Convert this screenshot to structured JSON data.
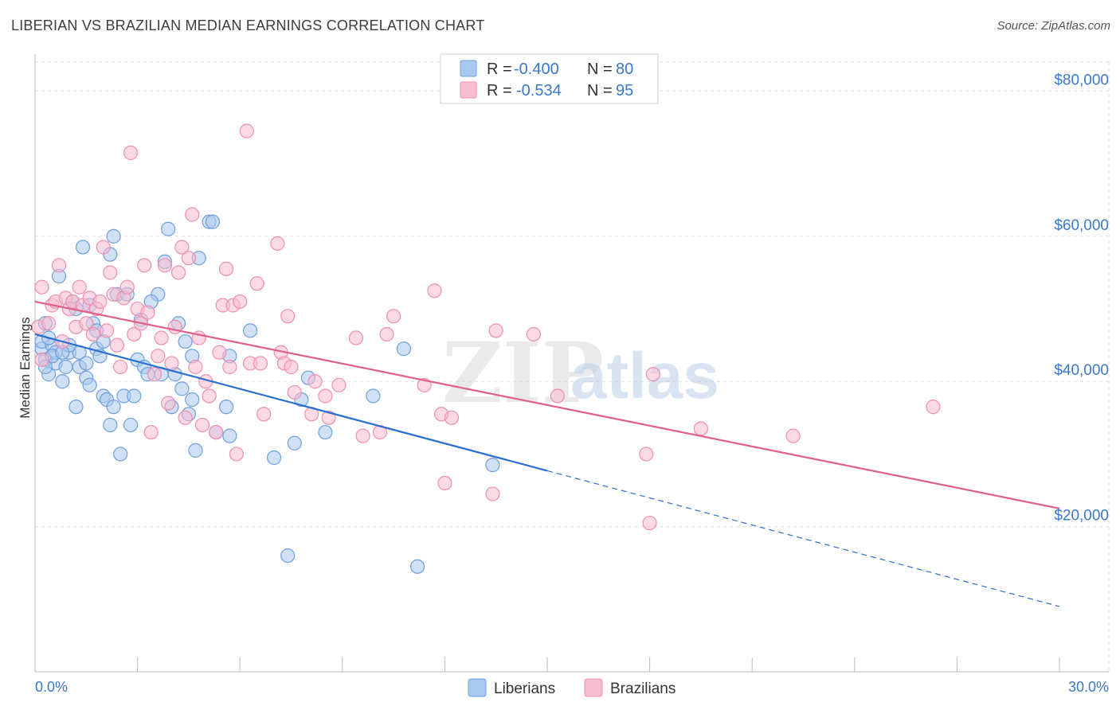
{
  "title": "LIBERIAN VS BRAZILIAN MEDIAN EARNINGS CORRELATION CHART",
  "source": "Source: ZipAtlas.com",
  "watermark": {
    "zip": "ZIP",
    "atlas": "atlas"
  },
  "colors": {
    "liberians_fill": "#a9c8ef",
    "liberians_stroke": "#6f9fdc",
    "liberians_line": "#2b6fd1",
    "brazilians_fill": "#f7bcd0",
    "brazilians_stroke": "#ec8fb0",
    "brazilians_line": "#e0608a",
    "axis_label": "#3b78c8",
    "grid": "#dddddd"
  },
  "legend": {
    "rows": [
      {
        "r_label": "R = ",
        "r_value": "-0.400",
        "n_label": "N = ",
        "n_value": "80"
      },
      {
        "r_label": "R = ",
        "r_value": "-0.534",
        "n_label": "N = ",
        "n_value": "95"
      }
    ]
  },
  "bottom_legend": [
    "Liberians",
    "Brazilians"
  ],
  "chart_data": {
    "type": "scatter",
    "xlabel": "",
    "ylabel": "Median Earnings",
    "xlim": [
      0,
      30
    ],
    "ylim": [
      0,
      84000
    ],
    "x_tick_labels": [
      "0.0%",
      "30.0%"
    ],
    "y_ticks": [
      20000,
      40000,
      60000,
      80000
    ],
    "y_tick_labels": [
      "$20,000",
      "$40,000",
      "$60,000",
      "$80,000"
    ],
    "grid": true,
    "series": [
      {
        "name": "Liberians",
        "r": -0.4,
        "n": 80,
        "trend": {
          "x0": 0,
          "y0": 46500,
          "x1": 15,
          "y1": 27700,
          "dashed_to_x": 30,
          "dashed_to_y": 9000
        },
        "points": [
          [
            0.2,
            44500
          ],
          [
            0.2,
            45500
          ],
          [
            0.3,
            43000
          ],
          [
            0.3,
            48000
          ],
          [
            0.4,
            41000
          ],
          [
            0.5,
            45000
          ],
          [
            0.6,
            42500
          ],
          [
            0.6,
            44000
          ],
          [
            0.7,
            54500
          ],
          [
            0.8,
            40000
          ],
          [
            0.9,
            42000
          ],
          [
            1.0,
            44000
          ],
          [
            1.1,
            51000
          ],
          [
            1.2,
            50000
          ],
          [
            1.2,
            36500
          ],
          [
            1.3,
            42000
          ],
          [
            1.3,
            44000
          ],
          [
            1.4,
            58500
          ],
          [
            1.5,
            40500
          ],
          [
            1.6,
            39500
          ],
          [
            1.6,
            50500
          ],
          [
            1.7,
            48000
          ],
          [
            1.8,
            47000
          ],
          [
            1.8,
            44500
          ],
          [
            1.9,
            43500
          ],
          [
            2.0,
            38000
          ],
          [
            2.1,
            37500
          ],
          [
            2.2,
            34000
          ],
          [
            2.2,
            57500
          ],
          [
            2.3,
            36500
          ],
          [
            2.3,
            60000
          ],
          [
            2.4,
            52000
          ],
          [
            2.5,
            30000
          ],
          [
            2.6,
            38000
          ],
          [
            2.7,
            52000
          ],
          [
            2.8,
            34000
          ],
          [
            2.9,
            38000
          ],
          [
            3.0,
            43000
          ],
          [
            3.1,
            48500
          ],
          [
            3.2,
            42000
          ],
          [
            3.3,
            41000
          ],
          [
            3.6,
            52000
          ],
          [
            3.7,
            41000
          ],
          [
            3.8,
            56500
          ],
          [
            3.9,
            61000
          ],
          [
            4.0,
            36500
          ],
          [
            4.1,
            41000
          ],
          [
            4.2,
            48000
          ],
          [
            4.3,
            39000
          ],
          [
            4.4,
            45500
          ],
          [
            4.5,
            35500
          ],
          [
            4.6,
            43500
          ],
          [
            4.7,
            30500
          ],
          [
            4.8,
            57000
          ],
          [
            5.1,
            62000
          ],
          [
            5.2,
            62000
          ],
          [
            5.3,
            33000
          ],
          [
            5.6,
            36500
          ],
          [
            5.7,
            32500
          ],
          [
            5.7,
            43500
          ],
          [
            6.3,
            47000
          ],
          [
            7.0,
            29500
          ],
          [
            7.4,
            16000
          ],
          [
            7.6,
            31500
          ],
          [
            7.8,
            37500
          ],
          [
            8.0,
            40500
          ],
          [
            8.5,
            33000
          ],
          [
            9.9,
            38000
          ],
          [
            10.8,
            44500
          ],
          [
            11.2,
            14500
          ],
          [
            13.4,
            28500
          ],
          [
            0.4,
            46000
          ],
          [
            0.5,
            43500
          ],
          [
            1.0,
            45000
          ],
          [
            1.5,
            42500
          ],
          [
            2.0,
            45500
          ],
          [
            3.4,
            51000
          ],
          [
            4.6,
            37500
          ],
          [
            0.3,
            42000
          ],
          [
            0.8,
            44000
          ]
        ]
      },
      {
        "name": "Brazilians",
        "r": -0.534,
        "n": 95,
        "trend": {
          "x0": 0,
          "y0": 51000,
          "x1": 30,
          "y1": 22500
        },
        "points": [
          [
            0.1,
            47500
          ],
          [
            0.2,
            43000
          ],
          [
            0.2,
            53000
          ],
          [
            0.4,
            48000
          ],
          [
            0.5,
            50500
          ],
          [
            0.6,
            51000
          ],
          [
            0.7,
            56000
          ],
          [
            0.8,
            45500
          ],
          [
            0.9,
            51500
          ],
          [
            1.0,
            50000
          ],
          [
            1.1,
            51000
          ],
          [
            1.2,
            47500
          ],
          [
            1.3,
            53000
          ],
          [
            1.4,
            50500
          ],
          [
            1.5,
            48000
          ],
          [
            1.6,
            51500
          ],
          [
            1.7,
            46500
          ],
          [
            1.8,
            50000
          ],
          [
            1.9,
            51000
          ],
          [
            2.0,
            58500
          ],
          [
            2.1,
            47000
          ],
          [
            2.2,
            55000
          ],
          [
            2.3,
            52000
          ],
          [
            2.4,
            45000
          ],
          [
            2.5,
            42000
          ],
          [
            2.6,
            51500
          ],
          [
            2.7,
            53000
          ],
          [
            2.8,
            71500
          ],
          [
            2.9,
            46500
          ],
          [
            3.0,
            50000
          ],
          [
            3.1,
            48000
          ],
          [
            3.2,
            56000
          ],
          [
            3.3,
            49500
          ],
          [
            3.4,
            33000
          ],
          [
            3.5,
            41000
          ],
          [
            3.6,
            43500
          ],
          [
            3.7,
            46000
          ],
          [
            3.8,
            56000
          ],
          [
            3.9,
            37000
          ],
          [
            4.0,
            42500
          ],
          [
            4.1,
            47500
          ],
          [
            4.2,
            55000
          ],
          [
            4.3,
            58500
          ],
          [
            4.4,
            35000
          ],
          [
            4.5,
            57000
          ],
          [
            4.6,
            63000
          ],
          [
            4.7,
            42000
          ],
          [
            4.8,
            46000
          ],
          [
            4.9,
            34000
          ],
          [
            5.0,
            40000
          ],
          [
            5.1,
            38000
          ],
          [
            5.3,
            33000
          ],
          [
            5.5,
            50500
          ],
          [
            5.6,
            55500
          ],
          [
            5.7,
            42000
          ],
          [
            5.8,
            50500
          ],
          [
            5.9,
            30000
          ],
          [
            6.0,
            51000
          ],
          [
            6.2,
            74500
          ],
          [
            6.3,
            42500
          ],
          [
            6.5,
            53500
          ],
          [
            6.6,
            42500
          ],
          [
            6.7,
            35500
          ],
          [
            7.1,
            59000
          ],
          [
            7.2,
            44000
          ],
          [
            7.3,
            42500
          ],
          [
            7.4,
            49000
          ],
          [
            7.5,
            42000
          ],
          [
            7.6,
            38500
          ],
          [
            8.1,
            35500
          ],
          [
            8.2,
            40000
          ],
          [
            8.5,
            38000
          ],
          [
            8.6,
            35000
          ],
          [
            8.9,
            39500
          ],
          [
            9.4,
            46000
          ],
          [
            9.6,
            32500
          ],
          [
            10.1,
            33000
          ],
          [
            10.3,
            46500
          ],
          [
            10.5,
            49000
          ],
          [
            11.4,
            39500
          ],
          [
            11.7,
            52500
          ],
          [
            11.9,
            35500
          ],
          [
            12.0,
            26000
          ],
          [
            12.2,
            35000
          ],
          [
            13.4,
            24500
          ],
          [
            13.5,
            47000
          ],
          [
            14.6,
            46500
          ],
          [
            15.3,
            38000
          ],
          [
            17.9,
            30000
          ],
          [
            18.0,
            20500
          ],
          [
            18.1,
            41000
          ],
          [
            19.5,
            33500
          ],
          [
            22.2,
            32500
          ],
          [
            26.3,
            36500
          ],
          [
            5.4,
            44000
          ]
        ]
      }
    ]
  }
}
